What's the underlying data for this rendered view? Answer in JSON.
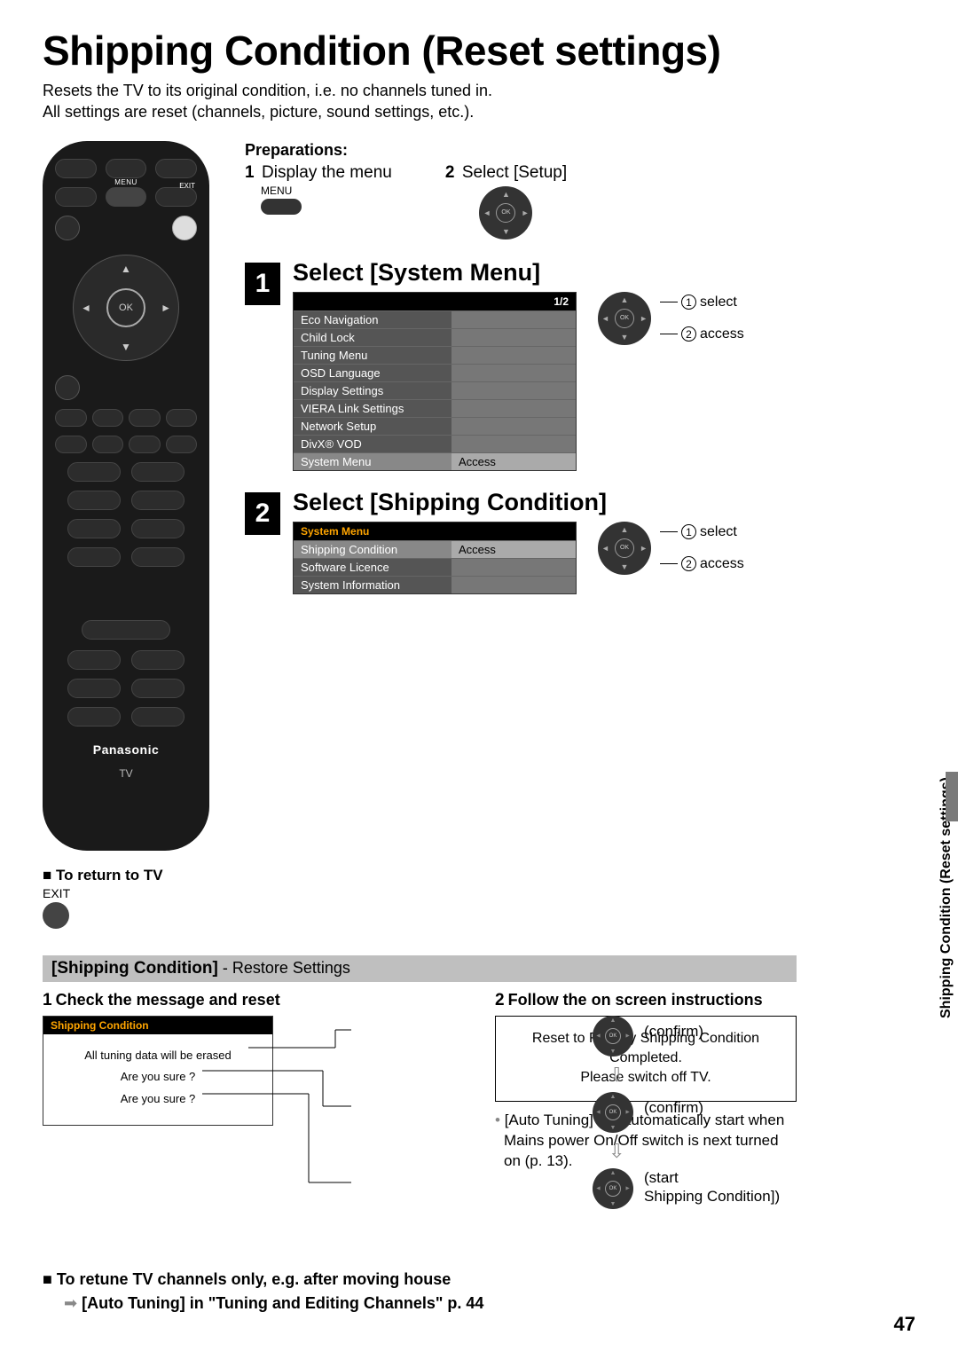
{
  "page": {
    "title": "Shipping Condition (Reset settings)",
    "intro_line1": "Resets the TV to its original condition, i.e. no channels tuned in.",
    "intro_line2": "All settings are reset (channels, picture, sound settings, etc.).",
    "page_number": "47",
    "side_tab": "Shipping Condition (Reset settings)"
  },
  "remote": {
    "menu_label": "MENU",
    "exit_label": "EXIT",
    "ok_label": "OK",
    "brand": "Panasonic",
    "brand_sub": "TV"
  },
  "return_tv": {
    "heading": "To return to TV",
    "exit": "EXIT"
  },
  "preparations": {
    "heading": "Preparations:",
    "item1_num": "1",
    "item1_text": "Display the menu",
    "item1_menu_label": "MENU",
    "item2_num": "2",
    "item2_text": "Select [Setup]"
  },
  "step1": {
    "number": "1",
    "title": "Select [System Menu]",
    "osd_pager": "1/2",
    "menu_items_left": [
      "Eco Navigation",
      "Child Lock",
      "Tuning Menu",
      "OSD Language",
      "Display Settings",
      "VIERA Link Settings",
      "Network Setup",
      "DivX® VOD",
      "System Menu"
    ],
    "menu_items_right": [
      "",
      "",
      "",
      "",
      "",
      "",
      "",
      "",
      "Access"
    ],
    "dpad_label1": "select",
    "dpad_label2": "access"
  },
  "step2": {
    "number": "2",
    "title": "Select [Shipping Condition]",
    "menu_header": "System Menu",
    "menu_items_left": [
      "Shipping Condition",
      "Software Licence",
      "System Information"
    ],
    "menu_items_right": [
      "Access",
      "",
      ""
    ],
    "dpad_label1": "select",
    "dpad_label2": "access"
  },
  "grey_bar": {
    "bold": "[Shipping Condition]",
    "rest": " - Restore Settings"
  },
  "bottom_left": {
    "num": "1",
    "heading": "Check the message and reset",
    "box_header": "Shipping Condition",
    "line1": "All tuning data will be erased",
    "line2": "Are you sure ?",
    "line3": "Are you sure ?",
    "confirm": "(confirm)",
    "start_l1": "(start",
    "start_l2": "Shipping Condition])"
  },
  "bottom_right": {
    "num": "2",
    "heading": "Follow the on screen instructions",
    "box_l1": "Reset to Factory Shipping Condition",
    "box_l2": "Completed.",
    "box_l3": "Please switch off TV.",
    "note": "[Auto Tuning] will automatically start when Mains power On/Off switch is next turned on (p. 13)."
  },
  "retune": {
    "line1": "To retune TV channels only, e.g. after moving house",
    "line2": "[Auto Tuning] in \"Tuning and Editing Channels\" p. 44"
  },
  "style": {
    "colors": {
      "page_bg": "#ffffff",
      "text": "#000000",
      "remote_body": "#1a1a1a",
      "remote_btn": "#2c2c2c",
      "grey_bar": "#bfbfbf",
      "osd_header_bg": "#000000",
      "osd_header_orange": "#ffa500",
      "osd_row_dark": "#555555",
      "osd_row_mid": "#777777",
      "osd_row_hl_left": "#888888",
      "osd_row_hl_right": "#aaaaaa",
      "side_bar": "#7a7a7a"
    },
    "fonts": {
      "title_pt": 46,
      "body_pt": 18,
      "step_title_pt": 27,
      "osd_pt": 13
    }
  }
}
